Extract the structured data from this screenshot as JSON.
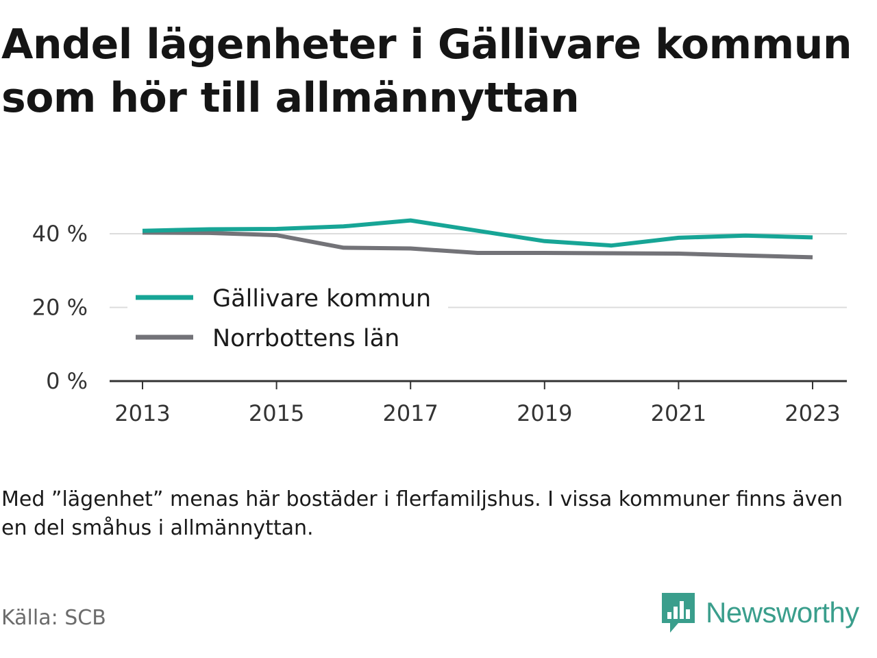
{
  "title": "Andel lägenheter i Gällivare kommun som hör till allmännyttan",
  "note": "Med ”lägenhet” menas här bostäder i flerfamiljshus. I vissa kommuner finns även en del småhus i allmännyttan.",
  "source": "Källa: SCB",
  "brand": {
    "name": "Newsworthy",
    "icon": "newsworthy-logo-icon",
    "color": "#3a9e8c"
  },
  "chart_data": {
    "type": "line",
    "x": [
      2013,
      2014,
      2015,
      2016,
      2017,
      2018,
      2019,
      2020,
      2021,
      2022,
      2023
    ],
    "x_ticks": [
      2013,
      2015,
      2017,
      2019,
      2021,
      2023
    ],
    "x_tick_labels": [
      "2013",
      "2015",
      "2017",
      "2019",
      "2021",
      "2023"
    ],
    "y_ticks": [
      0,
      20,
      40
    ],
    "y_tick_labels": [
      "0 %",
      "20 %",
      "40 %"
    ],
    "ylim": [
      0,
      45
    ],
    "grid": true,
    "legend_position": "bottom-left",
    "series": [
      {
        "name": "Gällivare kommun",
        "color": "#17a596",
        "values": [
          40.8,
          41.2,
          41.3,
          42.0,
          43.6,
          40.8,
          38.0,
          36.8,
          38.9,
          39.5,
          39.0
        ]
      },
      {
        "name": "Norrbottens län",
        "color": "#737378",
        "values": [
          40.3,
          40.2,
          39.6,
          36.2,
          36.0,
          34.8,
          34.8,
          34.7,
          34.6,
          34.1,
          33.6
        ]
      }
    ]
  }
}
